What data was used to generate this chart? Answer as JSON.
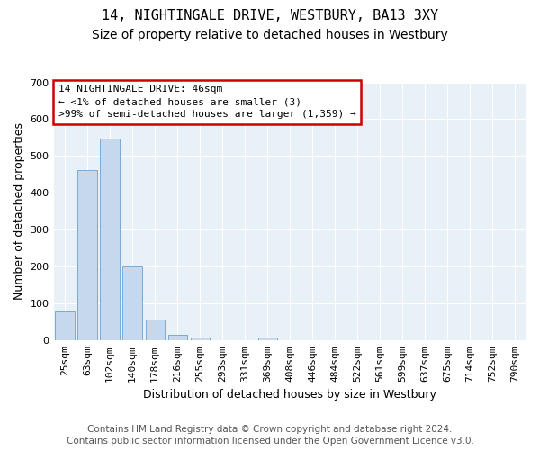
{
  "title": "14, NIGHTINGALE DRIVE, WESTBURY, BA13 3XY",
  "subtitle": "Size of property relative to detached houses in Westbury",
  "xlabel": "Distribution of detached houses by size in Westbury",
  "ylabel": "Number of detached properties",
  "categories": [
    "25sqm",
    "63sqm",
    "102sqm",
    "140sqm",
    "178sqm",
    "216sqm",
    "255sqm",
    "293sqm",
    "331sqm",
    "369sqm",
    "408sqm",
    "446sqm",
    "484sqm",
    "522sqm",
    "561sqm",
    "599sqm",
    "637sqm",
    "675sqm",
    "714sqm",
    "752sqm",
    "790sqm"
  ],
  "values": [
    80,
    462,
    548,
    202,
    57,
    15,
    7,
    0,
    0,
    7,
    0,
    0,
    0,
    0,
    0,
    0,
    0,
    0,
    0,
    0,
    0
  ],
  "bar_color": "#c5d8ee",
  "bar_edge_color": "#7aaad4",
  "ylim": [
    0,
    700
  ],
  "yticks": [
    0,
    100,
    200,
    300,
    400,
    500,
    600,
    700
  ],
  "annotation_text": "14 NIGHTINGALE DRIVE: 46sqm\n← <1% of detached houses are smaller (3)\n>99% of semi-detached houses are larger (1,359) →",
  "annotation_box_color": "#ffffff",
  "annotation_box_edge_color": "#cc0000",
  "footer_line1": "Contains HM Land Registry data © Crown copyright and database right 2024.",
  "footer_line2": "Contains public sector information licensed under the Open Government Licence v3.0.",
  "bg_color": "#ffffff",
  "plot_bg_color": "#e8f0f8",
  "grid_color": "#ffffff",
  "title_fontsize": 11,
  "subtitle_fontsize": 10,
  "axis_label_fontsize": 9,
  "tick_fontsize": 8,
  "annotation_fontsize": 8,
  "footer_fontsize": 7.5
}
